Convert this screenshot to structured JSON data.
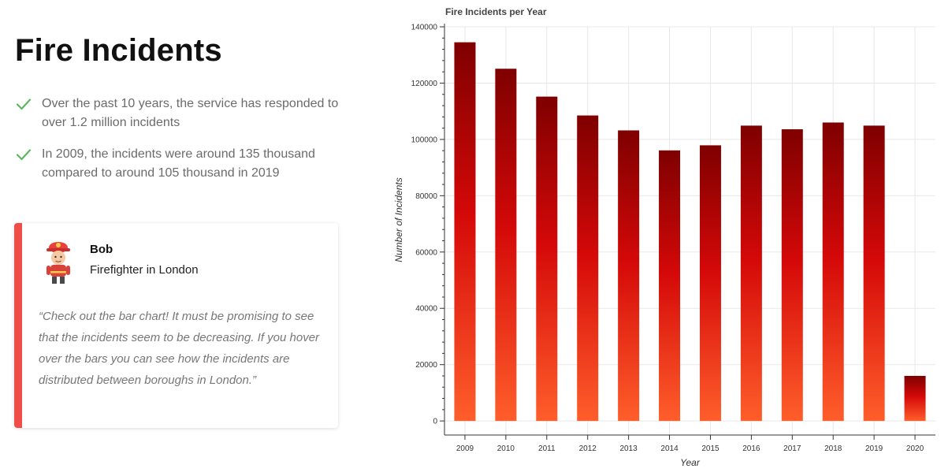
{
  "page": {
    "title": "Fire Incidents",
    "bullets": [
      "Over the past 10 years, the service has responded to over 1.2 million incidents",
      "In 2009, the incidents were around 135 thousand compared to around 105 thousand in 2019"
    ]
  },
  "testimonial": {
    "name": "Bob",
    "role": "Firefighter in London",
    "quote": "“Check out the bar chart! It must be promising to see that the incidents seem to be decreasing. If you hover over the bars you can see how the incidents are distributed between boroughs in London.”",
    "accent_color": "#f04d48"
  },
  "icons": {
    "bullet": "check-icon",
    "avatar": "firefighter-avatar-icon"
  },
  "colors": {
    "check": "#5cb85c",
    "bar_top": "#7f0000",
    "bar_mid": "#d40808",
    "bar_bottom": "#ff5e2b"
  },
  "chart_data": {
    "type": "bar",
    "title": "Fire Incidents per Year",
    "xlabel": "Year",
    "ylabel": "Number of Incidents",
    "categories": [
      "2009",
      "2010",
      "2011",
      "2012",
      "2013",
      "2014",
      "2015",
      "2016",
      "2017",
      "2018",
      "2019",
      "2020"
    ],
    "values": [
      134500,
      125100,
      115200,
      108500,
      103200,
      96100,
      97900,
      104900,
      103600,
      106000,
      104900,
      16000
    ],
    "ylim": [
      -5000,
      140000
    ],
    "yticks": [
      0,
      20000,
      40000,
      60000,
      80000,
      100000,
      120000,
      140000
    ],
    "grid": true
  }
}
